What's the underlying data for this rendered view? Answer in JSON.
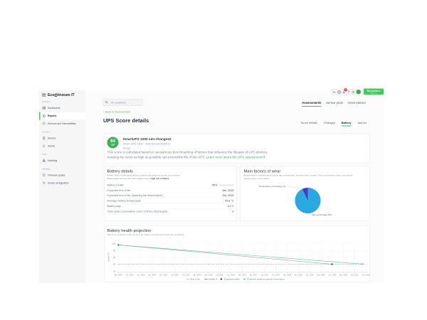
{
  "brand": {
    "logo_prefix": "Eco",
    "logo_suffix": "truxure IT",
    "schneider_line1": "Schneider",
    "schneider_line2": "Electric"
  },
  "header": {
    "search_placeholder": "All Locations",
    "notification_count": "9"
  },
  "primary_tabs": [
    {
      "label": "Assessments",
      "active": true
    },
    {
      "label": "Sensor plots",
      "active": false
    },
    {
      "label": "Asset Advisor",
      "active": false
    }
  ],
  "page": {
    "back_link": "‹ Back to Assessment",
    "title": "UPS Score details"
  },
  "detail_tabs": [
    {
      "label": "Score details",
      "active": false
    },
    {
      "label": "Changes",
      "active": false
    },
    {
      "label": "Battery",
      "active": true
    },
    {
      "label": "Alarms",
      "active": false
    }
  ],
  "sidebar": {
    "sections": [
      {
        "label": "Analyze",
        "items": [
          {
            "icon": "dashboards",
            "label": "Dashboards",
            "active": false
          },
          {
            "icon": "reports",
            "label": "Reports",
            "active": true
          },
          {
            "icon": "services",
            "label": "Services and Vulnerabilities",
            "active": false
          }
        ]
      },
      {
        "label": "Monitor",
        "items": [
          {
            "icon": "devices",
            "label": "Devices",
            "active": false
          },
          {
            "icon": "alarms",
            "label": "Alarms",
            "active": false
          }
        ]
      },
      {
        "label": "Plan",
        "items": [
          {
            "icon": "modeling",
            "label": "Modeling",
            "active": false
          }
        ]
      },
      {
        "label": "Manage",
        "items": [
          {
            "icon": "firmware",
            "label": "Firmware update",
            "active": false
          },
          {
            "icon": "config",
            "label": "Device configuration",
            "active": false
          }
        ]
      }
    ]
  },
  "score_card": {
    "score": "84",
    "score_total": "100",
    "device_name": "SmartUPS 1000 sim-changes2",
    "device_model": "Smart-UPS 1000  ·  SN4-00C067A0D410",
    "location": "Kenya",
    "description_line1": "This score is calculated based on anonymous benchmarking of factors that influence the lifespan of UPS devices.",
    "description_line2": "Keeping the score as high as possible can extend the life of the UPS.",
    "learn_more_label": "Learn more about the UPS assessment"
  },
  "battery_details": {
    "title": "Battery details",
    "description_line1": "Battery health is calculated based on factors that influence the life of the battery.",
    "description_line2_prefix": "Batteries that are less than 40% healthy have a ",
    "description_line2_bold": "high risk of failure.",
    "rows": [
      {
        "label": "Battery health",
        "value": "95%",
        "bar_percent": 95
      },
      {
        "label": "Expected end of life",
        "value": "Jan. 2029"
      },
      {
        "label": "Expected end of life (lowering the temperature)",
        "value": "Oct. 2029"
      },
      {
        "label": "Average battery temperature",
        "value": "25.6 °C"
      },
      {
        "label": "Battery age",
        "value": "0.2 Y"
      },
      {
        "label": "Total cycles (cumulative count of times discharged)",
        "value": "0"
      }
    ]
  },
  "wear_card": {
    "title": "Main factors of wear",
    "description_line1": "Battery wear is primarily caused by its age, temperature, and how often it cycles. This is an estimate of the main factors",
    "description_line2": "causing wear on the battery."
  },
  "projection_card": {
    "title": "Battery health projection",
    "description": "This is our projection of the decay of the battery over the time it has been monitored."
  },
  "chart_data": [
    {
      "type": "pie",
      "title": "Main factors of wear",
      "labels": [
        "Age percentage",
        "Temperature percentage"
      ],
      "values": [
        93,
        7
      ],
      "colors": [
        "#29a9e1",
        "#5133c5"
      ],
      "annotations": {
        "temperature": "Temperature percentage (7)",
        "age": "Age percentage (93)"
      }
    },
    {
      "type": "line",
      "title": "Battery health projection",
      "ylabel": "Health %",
      "ylim": [
        20,
        100
      ],
      "yticks": [
        100,
        80,
        60,
        40,
        20
      ],
      "x": [
        "Apr. 2024",
        "Jul. 2024",
        "Oct. 2024",
        "Jan. 2025",
        "Apr. 2025",
        "Jul. 2025",
        "Oct. 2025",
        "Jan. 2026",
        "Apr. 2026",
        "Jul. 2026",
        "Oct. 2026",
        "Jan. 2027",
        "Apr. 2027",
        "Jul. 2027",
        "Oct. 2027",
        "Jan. 2028",
        "Apr. 2028",
        "Jul. 2028",
        "Oct. 2028",
        "Jan. 2029",
        "Apr. 2029",
        "Jul. 2029",
        "Oct. 2029"
      ],
      "end_of_life_value": 40,
      "series": [
        {
          "name": "End of life",
          "color": "#ababab",
          "style": "dashed",
          "points": [
            [
              0,
              40
            ],
            [
              22,
              40
            ]
          ]
        },
        {
          "name": "Health %",
          "color": "#1d6f42",
          "style": "solid",
          "points": [
            [
              0,
              96
            ],
            [
              0.3,
              95.8
            ]
          ]
        },
        {
          "name": "Projected health",
          "color": "#95a7a3",
          "style": "solid",
          "marker": "#35473f",
          "points": [
            [
              0,
              96
            ],
            [
              19,
              40
            ]
          ]
        },
        {
          "name": "Projected health at optimal temperature",
          "color": "#5cc3ae",
          "style": "solid",
          "marker": "#5cc3ae",
          "points": [
            [
              0,
              96
            ],
            [
              21.7,
              40.4
            ]
          ]
        }
      ],
      "legend": [
        "End of life",
        "Health %",
        "Projected health",
        "Projected health at optimal temperature"
      ],
      "legend_position": "bottom"
    }
  ]
}
